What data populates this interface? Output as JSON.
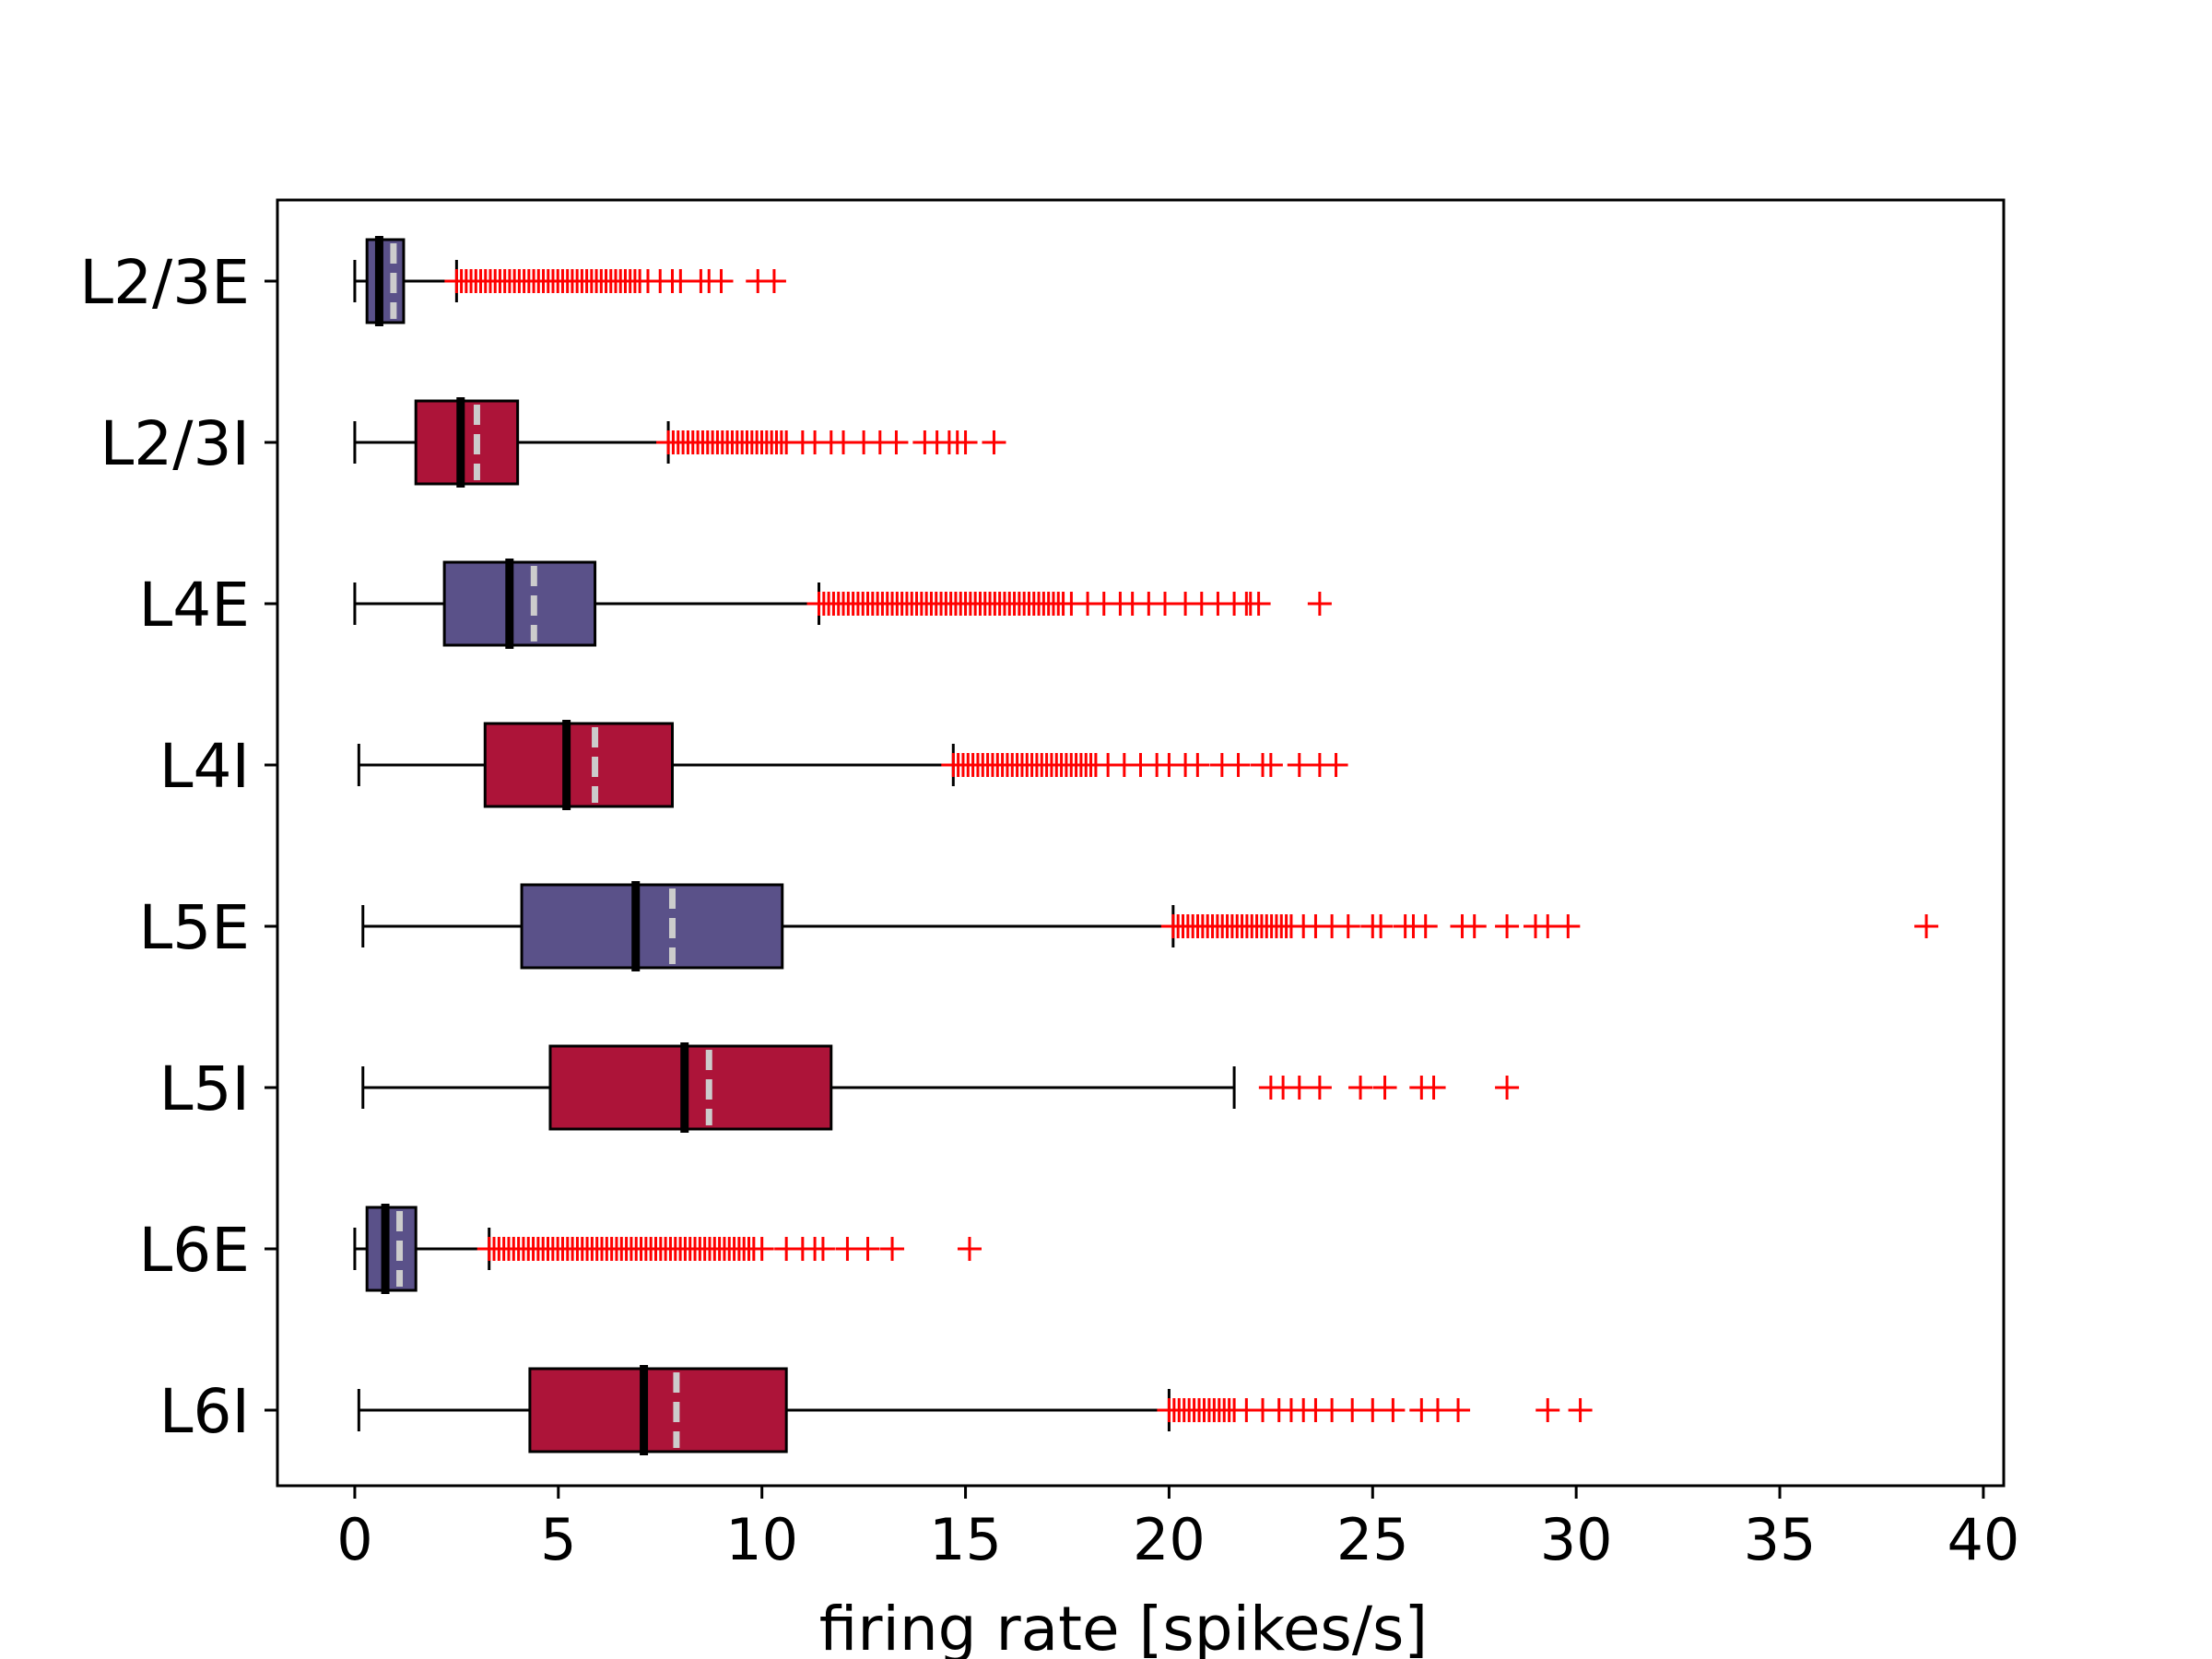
{
  "chart_data": {
    "type": "boxplot",
    "orientation": "horizontal",
    "title": "",
    "xlabel": "firing rate [spikes/s]",
    "ylabel": "",
    "xlim": [
      -1.9,
      40.5
    ],
    "xticks": [
      0,
      5,
      10,
      15,
      20,
      25,
      30,
      35,
      40
    ],
    "grid": false,
    "legend": null,
    "colors": {
      "excitatory": "#5a5189",
      "inhibitory": "#ad1439",
      "median": "#000000",
      "mean": "#cccccc",
      "outlier": "#ff0000"
    },
    "categories": [
      "L2/3E",
      "L2/3I",
      "L4E",
      "L4I",
      "L5E",
      "L5I",
      "L6E",
      "L6I"
    ],
    "boxes": [
      {
        "label": "L2/3E",
        "kind": "excitatory",
        "whisker_low": 0.0,
        "q1": 0.3,
        "median": 0.6,
        "mean": 0.95,
        "q3": 1.2,
        "whisker_high": 2.5,
        "outliers_from": 2.5,
        "outliers_to": 7.0,
        "outliers": [
          7.2,
          7.5,
          7.8,
          8.0,
          8.5,
          8.7,
          9.0,
          9.9,
          10.3
        ]
      },
      {
        "label": "L2/3I",
        "kind": "inhibitory",
        "whisker_low": 0.0,
        "q1": 1.5,
        "median": 2.6,
        "mean": 3.0,
        "q3": 4.0,
        "whisker_high": 7.7,
        "outliers_from": 7.7,
        "outliers_to": 10.6,
        "outliers": [
          11.0,
          11.3,
          11.7,
          12.0,
          12.5,
          12.9,
          13.3,
          14.0,
          14.3,
          14.6,
          14.8,
          15.0,
          15.7
        ]
      },
      {
        "label": "L4E",
        "kind": "excitatory",
        "whisker_low": 0.0,
        "q1": 2.2,
        "median": 3.8,
        "mean": 4.4,
        "q3": 5.9,
        "whisker_high": 11.4,
        "outliers_from": 11.4,
        "outliers_to": 17.4,
        "outliers": [
          17.6,
          18.0,
          18.4,
          18.8,
          19.1,
          19.5,
          19.9,
          20.4,
          20.8,
          21.2,
          21.6,
          21.9,
          22.0,
          22.2,
          23.7
        ]
      },
      {
        "label": "L4I",
        "kind": "inhibitory",
        "whisker_low": 0.1,
        "q1": 3.2,
        "median": 5.2,
        "mean": 5.9,
        "q3": 7.8,
        "whisker_high": 14.7,
        "outliers_from": 14.7,
        "outliers_to": 18.2,
        "outliers": [
          18.5,
          18.9,
          19.3,
          19.7,
          20.0,
          20.4,
          20.7,
          21.3,
          21.7,
          22.3,
          22.5,
          23.2,
          23.7,
          24.1
        ]
      },
      {
        "label": "L5E",
        "kind": "excitatory",
        "whisker_low": 0.2,
        "q1": 4.1,
        "median": 6.9,
        "mean": 7.8,
        "q3": 10.5,
        "whisker_high": 20.1,
        "outliers_from": 20.1,
        "outliers_to": 23.0,
        "outliers": [
          23.3,
          23.6,
          24.0,
          24.4,
          25.0,
          25.2,
          25.8,
          26.0,
          26.3,
          27.2,
          27.5,
          28.3,
          29.0,
          29.3,
          29.8,
          38.6
        ]
      },
      {
        "label": "L5I",
        "kind": "inhibitory",
        "whisker_low": 0.2,
        "q1": 4.8,
        "median": 8.1,
        "mean": 8.7,
        "q3": 11.7,
        "whisker_high": 21.6,
        "outliers_from": null,
        "outliers_to": null,
        "outliers": [
          22.5,
          22.8,
          23.2,
          23.7,
          24.7,
          25.3,
          26.2,
          26.5,
          28.3
        ]
      },
      {
        "label": "L6E",
        "kind": "excitatory",
        "whisker_low": 0.0,
        "q1": 0.3,
        "median": 0.75,
        "mean": 1.1,
        "q3": 1.5,
        "whisker_high": 3.3,
        "outliers_from": 3.3,
        "outliers_to": 9.8,
        "outliers": [
          10.0,
          10.6,
          11.0,
          11.3,
          11.5,
          12.1,
          12.6,
          13.2,
          15.1
        ]
      },
      {
        "label": "L6I",
        "kind": "inhibitory",
        "whisker_low": 0.1,
        "q1": 4.3,
        "median": 7.1,
        "mean": 7.9,
        "q3": 10.6,
        "whisker_high": 20.0,
        "outliers_from": 20.0,
        "outliers_to": 21.6,
        "outliers": [
          21.9,
          22.3,
          22.7,
          23.0,
          23.3,
          23.6,
          24.0,
          24.5,
          25.0,
          25.5,
          26.2,
          26.6,
          27.1,
          29.3,
          30.1
        ]
      }
    ]
  }
}
